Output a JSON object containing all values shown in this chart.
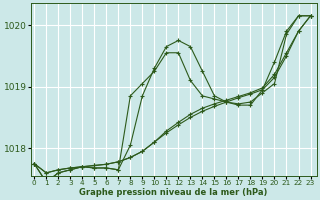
{
  "xlabel": "Graphe pression niveau de la mer (hPa)",
  "background_color": "#cce8e8",
  "grid_color": "#ffffff",
  "line_color": "#2d5a1b",
  "x_ticks": [
    0,
    1,
    2,
    3,
    4,
    5,
    6,
    7,
    8,
    9,
    10,
    11,
    12,
    13,
    14,
    15,
    16,
    17,
    18,
    19,
    20,
    21,
    22,
    23
  ],
  "y_ticks": [
    1018,
    1019,
    1020
  ],
  "ylim": [
    1017.55,
    1020.35
  ],
  "xlim": [
    -0.3,
    23.5
  ],
  "lines": [
    {
      "x": [
        0,
        1,
        2,
        3,
        4,
        5,
        6,
        7,
        8,
        9,
        10,
        11,
        12,
        13,
        14,
        15,
        16,
        17,
        18,
        19,
        20,
        21,
        22,
        23
      ],
      "y": [
        1017.75,
        1017.45,
        1017.6,
        1017.65,
        1017.7,
        1017.68,
        1017.68,
        1017.65,
        1018.85,
        1019.05,
        1019.25,
        1019.55,
        1019.55,
        1019.1,
        1018.85,
        1018.8,
        1018.75,
        1018.72,
        1018.75,
        1018.9,
        1019.05,
        1019.85,
        1020.15,
        1020.15
      ]
    },
    {
      "x": [
        0,
        1,
        2,
        3,
        4,
        5,
        6,
        7,
        8,
        9,
        10,
        11,
        12,
        13,
        14,
        15,
        16,
        17,
        18,
        19,
        20,
        21,
        22,
        23
      ],
      "y": [
        1017.75,
        1017.45,
        1017.6,
        1017.65,
        1017.7,
        1017.68,
        1017.68,
        1017.65,
        1018.05,
        1018.85,
        1019.3,
        1019.65,
        1019.75,
        1019.65,
        1019.25,
        1018.85,
        1018.75,
        1018.7,
        1018.7,
        1018.95,
        1019.4,
        1019.9,
        1020.15,
        1020.15
      ]
    },
    {
      "x": [
        0,
        1,
        2,
        3,
        4,
        5,
        6,
        7,
        8,
        9,
        10,
        11,
        12,
        13,
        14,
        15,
        16,
        17,
        18,
        19,
        20,
        21,
        22,
        23
      ],
      "y": [
        1017.75,
        1017.6,
        1017.65,
        1017.68,
        1017.7,
        1017.72,
        1017.74,
        1017.78,
        1017.85,
        1017.95,
        1018.1,
        1018.25,
        1018.38,
        1018.5,
        1018.6,
        1018.68,
        1018.75,
        1018.82,
        1018.88,
        1018.95,
        1019.15,
        1019.5,
        1019.9,
        1020.15
      ]
    },
    {
      "x": [
        0,
        1,
        2,
        3,
        4,
        5,
        6,
        7,
        8,
        9,
        10,
        11,
        12,
        13,
        14,
        15,
        16,
        17,
        18,
        19,
        20,
        21,
        22,
        23
      ],
      "y": [
        1017.75,
        1017.6,
        1017.65,
        1017.68,
        1017.7,
        1017.72,
        1017.74,
        1017.78,
        1017.85,
        1017.95,
        1018.1,
        1018.28,
        1018.42,
        1018.55,
        1018.65,
        1018.72,
        1018.78,
        1018.84,
        1018.9,
        1018.98,
        1019.2,
        1019.55,
        1019.9,
        1020.15
      ]
    }
  ]
}
